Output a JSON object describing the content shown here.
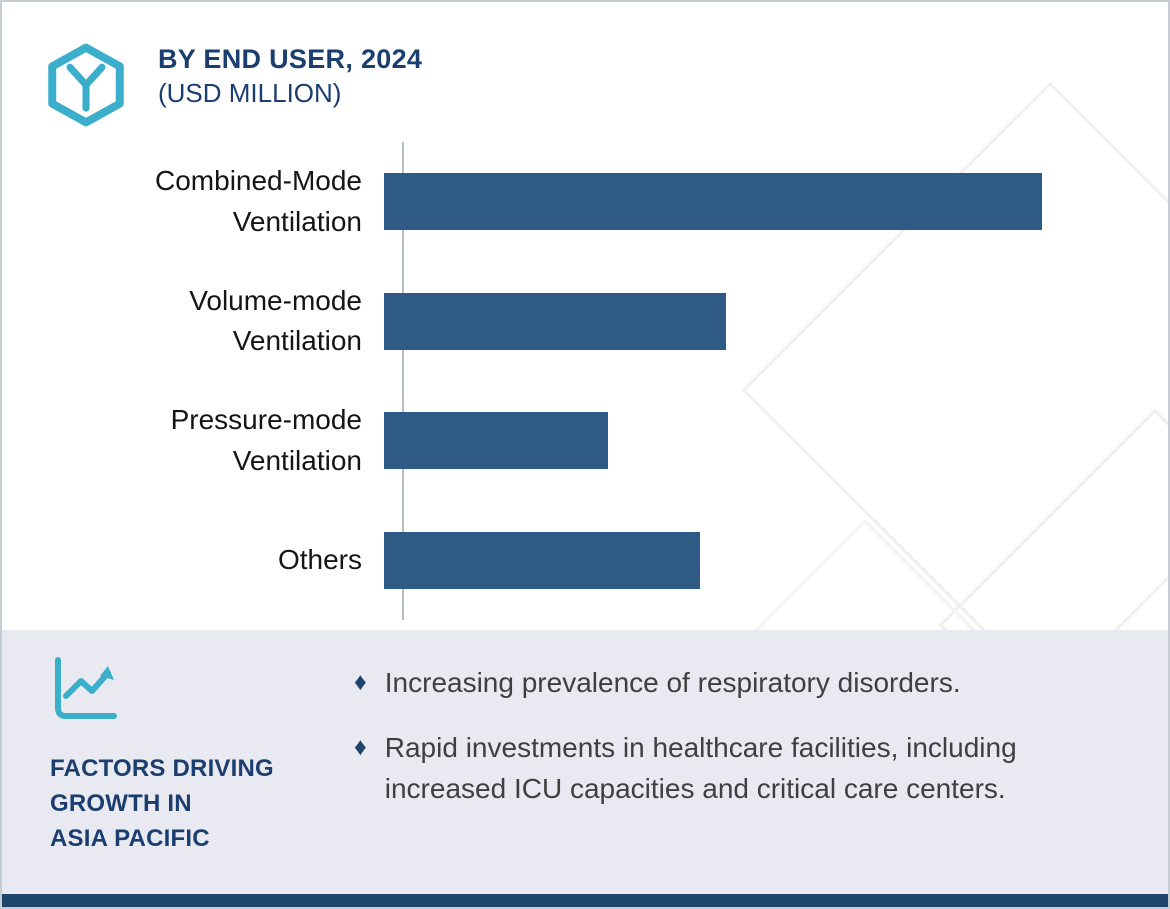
{
  "header": {
    "title": "BY END USER, 2024",
    "subtitle": "(USD MILLION)",
    "logo_icon": "hexagon-y-logo"
  },
  "chart_data": {
    "type": "bar",
    "orientation": "horizontal",
    "title": "BY END USER, 2024 (USD MILLION)",
    "categories": [
      "Combined-Mode\nVentilation",
      "Volume-mode\nVentilation",
      "Pressure-mode\nVentilation",
      "Others"
    ],
    "values": [
      100,
      52,
      34,
      48
    ],
    "value_note": "relative bar lengths, axis unlabeled",
    "xlabel": "",
    "ylabel": "",
    "grid": false,
    "legend": false,
    "bar_color": "#2e5a85"
  },
  "footer": {
    "icon": "line-chart-icon",
    "heading": "FACTORS DRIVING\nGROWTH IN\nASIA PACIFIC",
    "bullet_marker": "♦",
    "bullets": [
      "Increasing prevalence of respiratory disorders.",
      "Rapid investments in healthcare facilities, including increased ICU capacities and critical care centers."
    ]
  },
  "colors": {
    "bar": "#2e5a85",
    "accent_teal": "#3baecc",
    "heading_navy": "#1b3e70",
    "footer_bg": "#e9eaf1",
    "bottom_strip": "#1e456b"
  }
}
